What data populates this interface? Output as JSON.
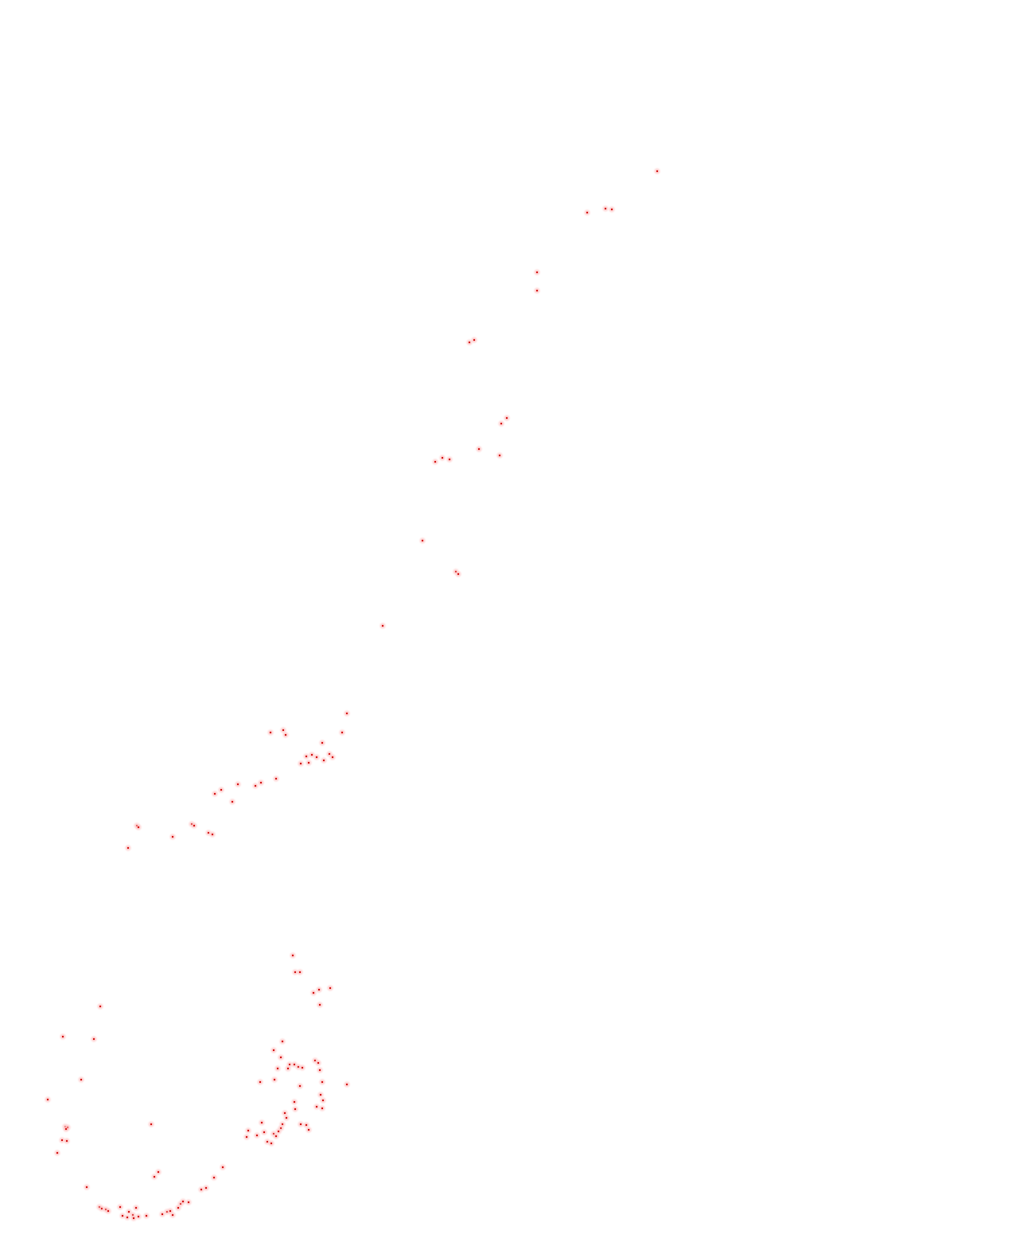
{
  "map": {
    "background_color": "#ffffff",
    "marker_color": "#cc0000",
    "marker_glow_color": "#ff9999",
    "marker_shape": "dot",
    "legend": "none",
    "labels": "none"
  }
}
